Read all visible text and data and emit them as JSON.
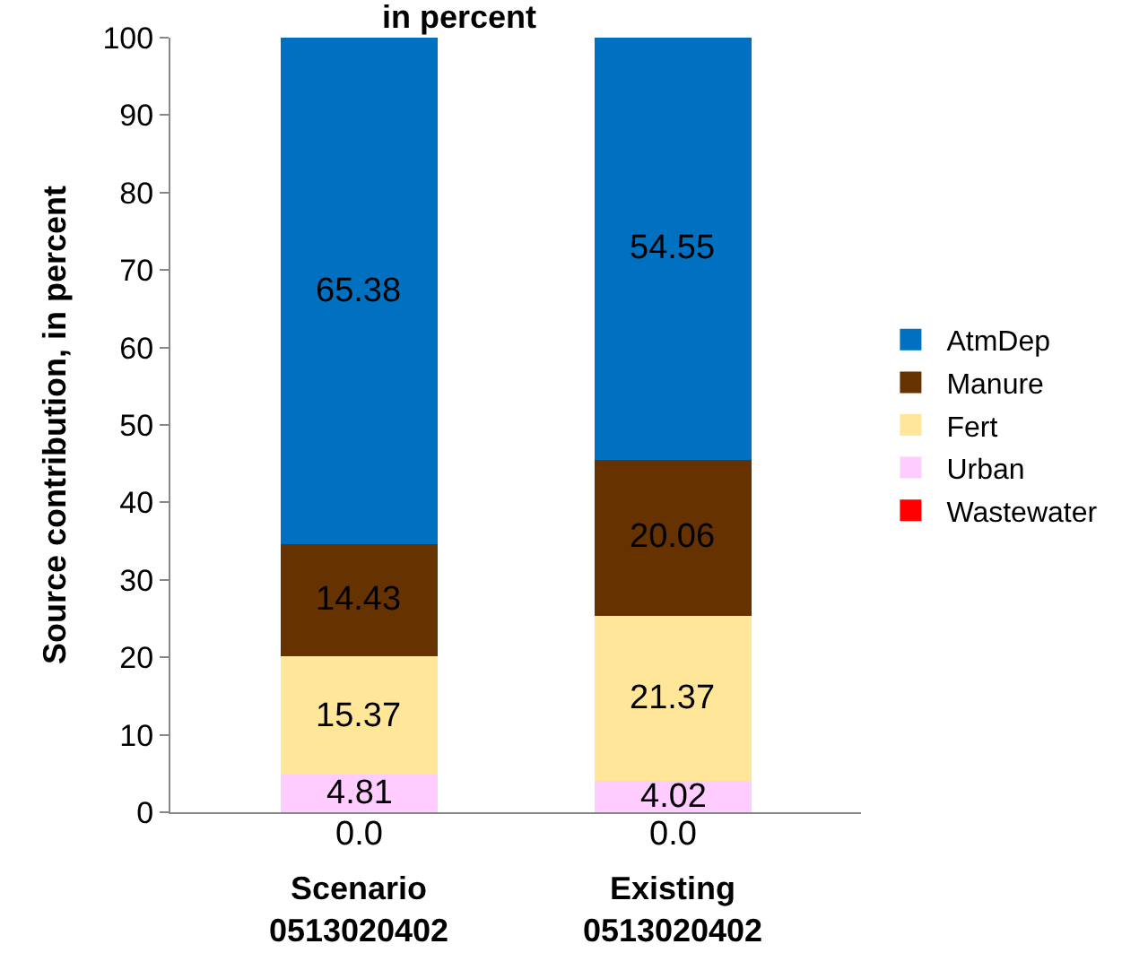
{
  "chart_data": {
    "type": "bar",
    "title": "in percent",
    "ylabel": "Source contribution, in percent",
    "categories": [
      "Scenario\n0513020402",
      "Existing\n0513020402"
    ],
    "stacked": true,
    "series": [
      {
        "name": "Wastewater",
        "color": "#ff0000",
        "values": [
          0.0,
          0.0
        ],
        "value_labels": [
          "0.0",
          "0.0"
        ]
      },
      {
        "name": "Urban",
        "color": "#ffccff",
        "values": [
          4.81,
          4.02
        ],
        "value_labels": [
          "4.81",
          "4.02"
        ]
      },
      {
        "name": "Fert",
        "color": "#ffe699",
        "values": [
          15.37,
          21.37
        ],
        "value_labels": [
          "15.37",
          "21.37"
        ]
      },
      {
        "name": "Manure",
        "color": "#663300",
        "values": [
          14.43,
          20.06
        ],
        "value_labels": [
          "14.43",
          "20.06"
        ]
      },
      {
        "name": "AtmDep",
        "color": "#0070c0",
        "values": [
          65.38,
          54.55
        ],
        "value_labels": [
          "65.38",
          "54.55"
        ]
      }
    ],
    "ylim": [
      0,
      100
    ],
    "yticks": [
      0,
      10,
      20,
      30,
      40,
      50,
      60,
      70,
      80,
      90,
      100
    ],
    "legend": "right"
  }
}
